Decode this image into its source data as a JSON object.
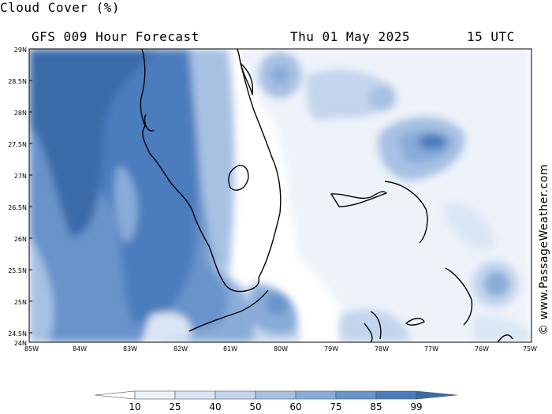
{
  "header": {
    "title": "Cloud Cover (%)",
    "subtitle": "GFS 009 Hour Forecast",
    "date": "Thu 01 May 2025",
    "time": "15 UTC"
  },
  "credit": "© www.PassageWeather.com",
  "map": {
    "lat_ticks": [
      "29N",
      "28.5N",
      "28N",
      "27.5N",
      "27N",
      "26.5N",
      "26N",
      "25.5N",
      "25N",
      "24.5N",
      "24N"
    ],
    "lon_ticks": [
      "85W",
      "84W",
      "83W",
      "82W",
      "81W",
      "80W",
      "79W",
      "78W",
      "77W",
      "76W",
      "75W"
    ]
  },
  "colorbar": {
    "levels": [
      "10",
      "25",
      "40",
      "50",
      "60",
      "75",
      "85",
      "99"
    ],
    "colors": [
      "#ffffff",
      "#eef3fa",
      "#dbe6f4",
      "#c3d5ec",
      "#a7c1e3",
      "#88abd8",
      "#6893cb",
      "#4b7cbd",
      "#3a6aa8"
    ]
  }
}
